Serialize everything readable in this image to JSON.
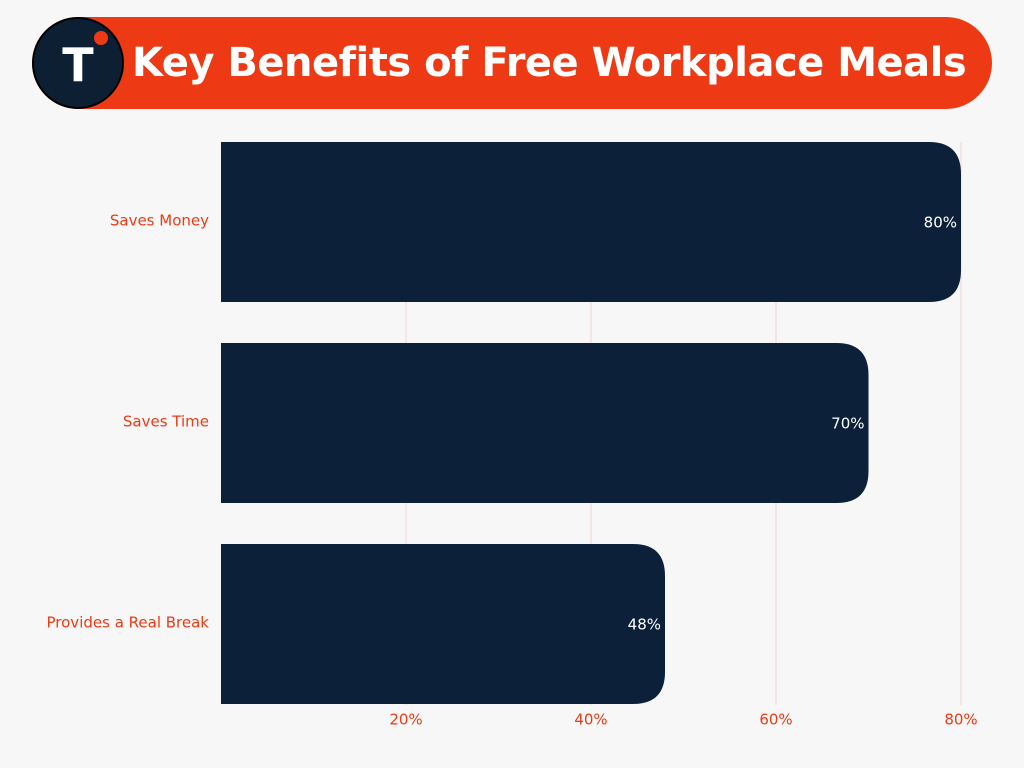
{
  "header": {
    "title": "Key Benefits of Free Workplace Meals",
    "logo_letter": "T",
    "banner_color": "#ee3a14",
    "logo_color": "#0d1f33"
  },
  "colors": {
    "bar": "#0c2039",
    "accent": "#ee3a14",
    "grid": "#f3d6d6",
    "background": "#f7f7f7"
  },
  "chart_data": {
    "type": "bar",
    "orientation": "horizontal",
    "categories": [
      "Saves Money",
      "Saves Time",
      "Provides a Real Break"
    ],
    "values": [
      80,
      70,
      48
    ],
    "value_labels": [
      "80%",
      "70%",
      "48%"
    ],
    "xlim": [
      0,
      80
    ],
    "x_ticks": [
      20,
      40,
      60,
      80
    ],
    "x_tick_labels": [
      "20%",
      "40%",
      "60%",
      "80%"
    ],
    "grid": true,
    "legend": "none"
  }
}
